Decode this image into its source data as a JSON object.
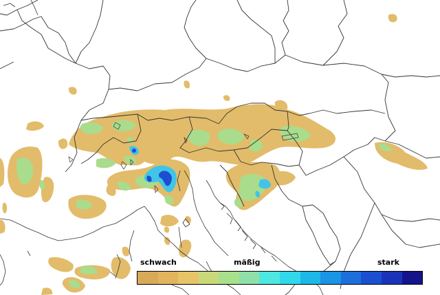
{
  "legend": {
    "labels": {
      "weak": "schwach",
      "moderate": "mäßig",
      "strong": "stark"
    },
    "colors": [
      "#d9a95a",
      "#e2b45e",
      "#e8c468",
      "#c9d97a",
      "#a8e08c",
      "#8fe0a8",
      "#4ee8e0",
      "#2fd8ea",
      "#1cb8e8",
      "#1a94e4",
      "#1d6fdc",
      "#1a4fd0",
      "#1a33b8",
      "#14158a"
    ]
  },
  "precip_colors": {
    "weak": "#e2bc6a",
    "light": "#a9dc8c",
    "moderate": "#42c4e8",
    "strong": "#1b4fd0"
  },
  "map_colors": {
    "borders": "#333333",
    "background": "#ffffff"
  }
}
